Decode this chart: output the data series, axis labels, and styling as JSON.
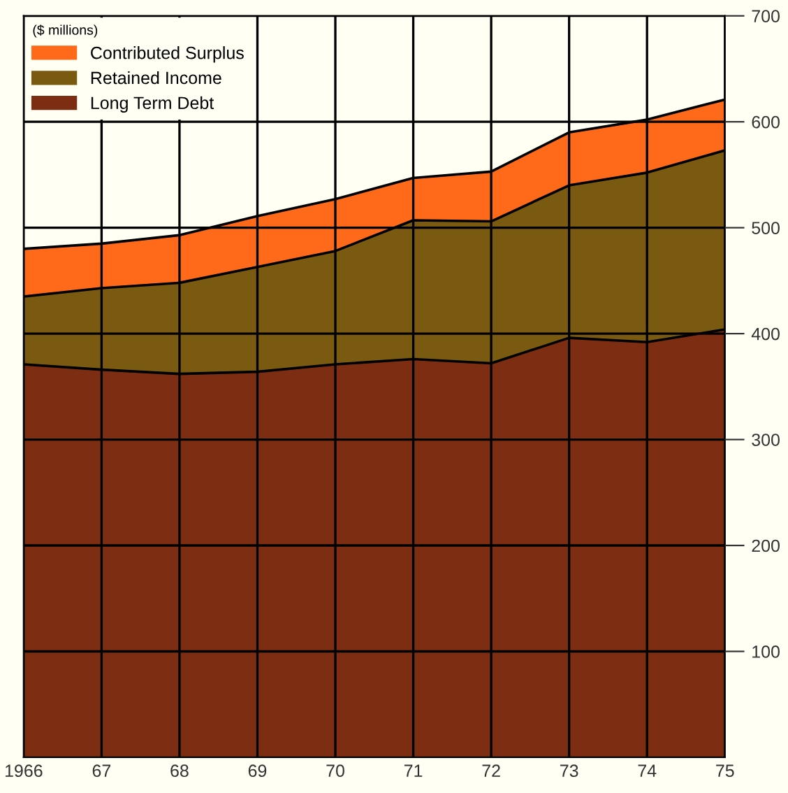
{
  "chart_data": {
    "type": "area",
    "stacked": true,
    "legend_title": "($ millions)",
    "categories": [
      "1966",
      "67",
      "68",
      "69",
      "70",
      "71",
      "72",
      "73",
      "74",
      "75"
    ],
    "series": [
      {
        "name": "Long Term Debt",
        "color": "#7d2e12",
        "values": [
          371,
          366,
          362,
          364,
          371,
          376,
          372,
          396,
          392,
          404
        ]
      },
      {
        "name": "Retained Income",
        "color": "#7a5a10",
        "values": [
          64,
          77,
          86,
          99,
          107,
          131,
          134,
          144,
          160,
          169
        ]
      },
      {
        "name": "Contributed Surplus",
        "color": "#ff6a1a",
        "values": [
          45,
          42,
          45,
          48,
          49,
          40,
          47,
          50,
          50,
          48
        ]
      }
    ],
    "ylim": [
      0,
      700
    ],
    "yticks": [
      100,
      200,
      300,
      400,
      500,
      600,
      700
    ],
    "grid": true,
    "legend": "top left"
  }
}
